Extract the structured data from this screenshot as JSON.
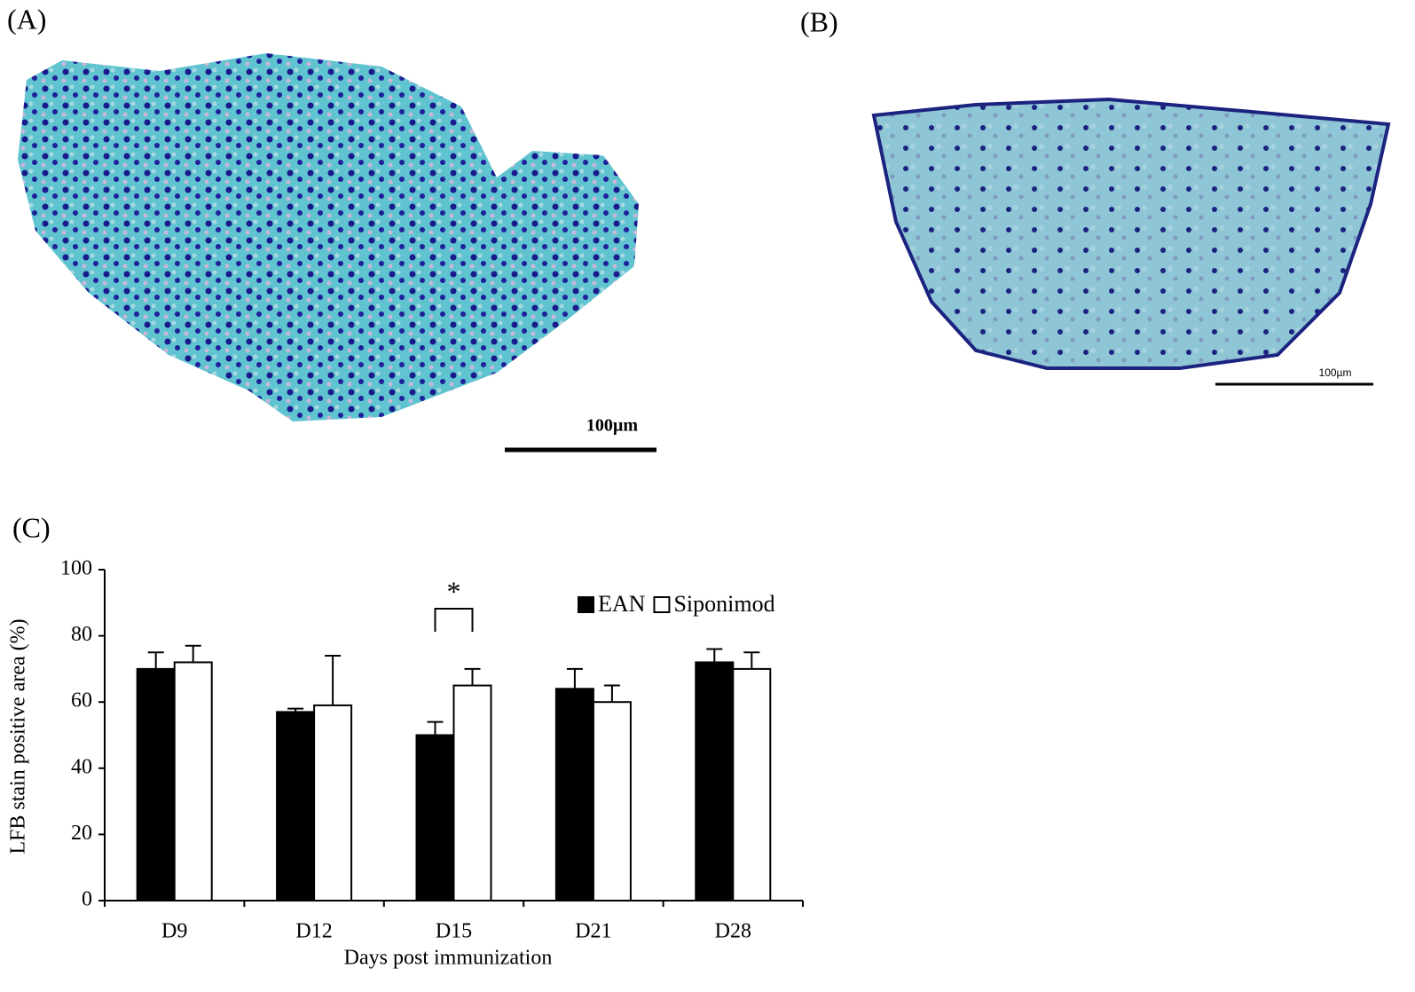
{
  "panels": [
    {
      "label": "(A)",
      "scale_bar": "100µm"
    },
    {
      "label": "(B)",
      "scale_bar": "100µm"
    }
  ],
  "chart_data": {
    "type": "bar",
    "panel_label": "(C)",
    "x_label": "Days  post immunization",
    "y_label": "LFB stain positive area (%)",
    "categories": [
      "D9",
      "D12",
      "D15",
      "D21",
      "D28"
    ],
    "series": [
      {
        "name": "EAN",
        "color": "#000000",
        "values": [
          70,
          57,
          50,
          64,
          72
        ],
        "errors": [
          5,
          1,
          4,
          6,
          4
        ]
      },
      {
        "name": "Siponimod",
        "color": "#ffffff",
        "values": [
          72,
          59,
          65,
          60,
          70
        ],
        "errors": [
          5,
          15,
          5,
          5,
          5
        ]
      }
    ],
    "ylim": [
      0,
      100
    ],
    "yticks": [
      0,
      20,
      40,
      60,
      80,
      100
    ],
    "annotations": [
      {
        "text": "*",
        "category": "D15"
      }
    ]
  }
}
